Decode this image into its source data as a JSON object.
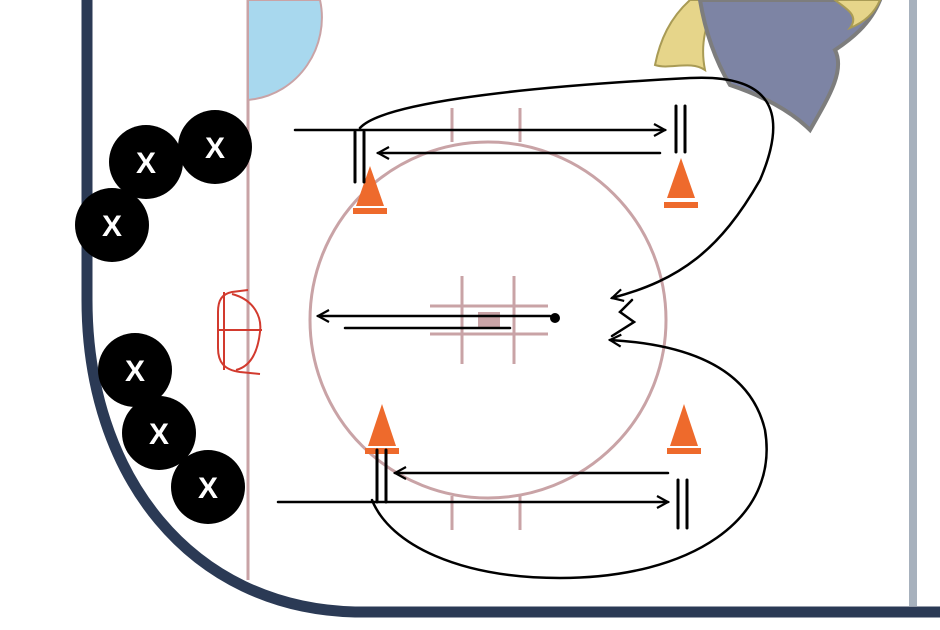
{
  "colors": {
    "board": "#2b3a55",
    "right_board": "#a7b1bd",
    "rink_line": "#c9a3a6",
    "crease": "#a8d8ee",
    "net": "#d23a2e",
    "cone": "#ee6a2c",
    "player": "#000000",
    "player_text": "#ffffff",
    "path": "#000000",
    "logo_body": "#7d84a4",
    "logo_hair": "#e6d58a"
  },
  "players": [
    {
      "id": "p1",
      "label": "X"
    },
    {
      "id": "p2",
      "label": "X"
    },
    {
      "id": "p3",
      "label": "X"
    },
    {
      "id": "p4",
      "label": "X"
    },
    {
      "id": "p5",
      "label": "X"
    },
    {
      "id": "p6",
      "label": "X"
    }
  ],
  "icons": {
    "cone": "cone-icon",
    "net": "goal-net-icon",
    "logo": "team-logo-icon",
    "puck": "puck-icon"
  }
}
